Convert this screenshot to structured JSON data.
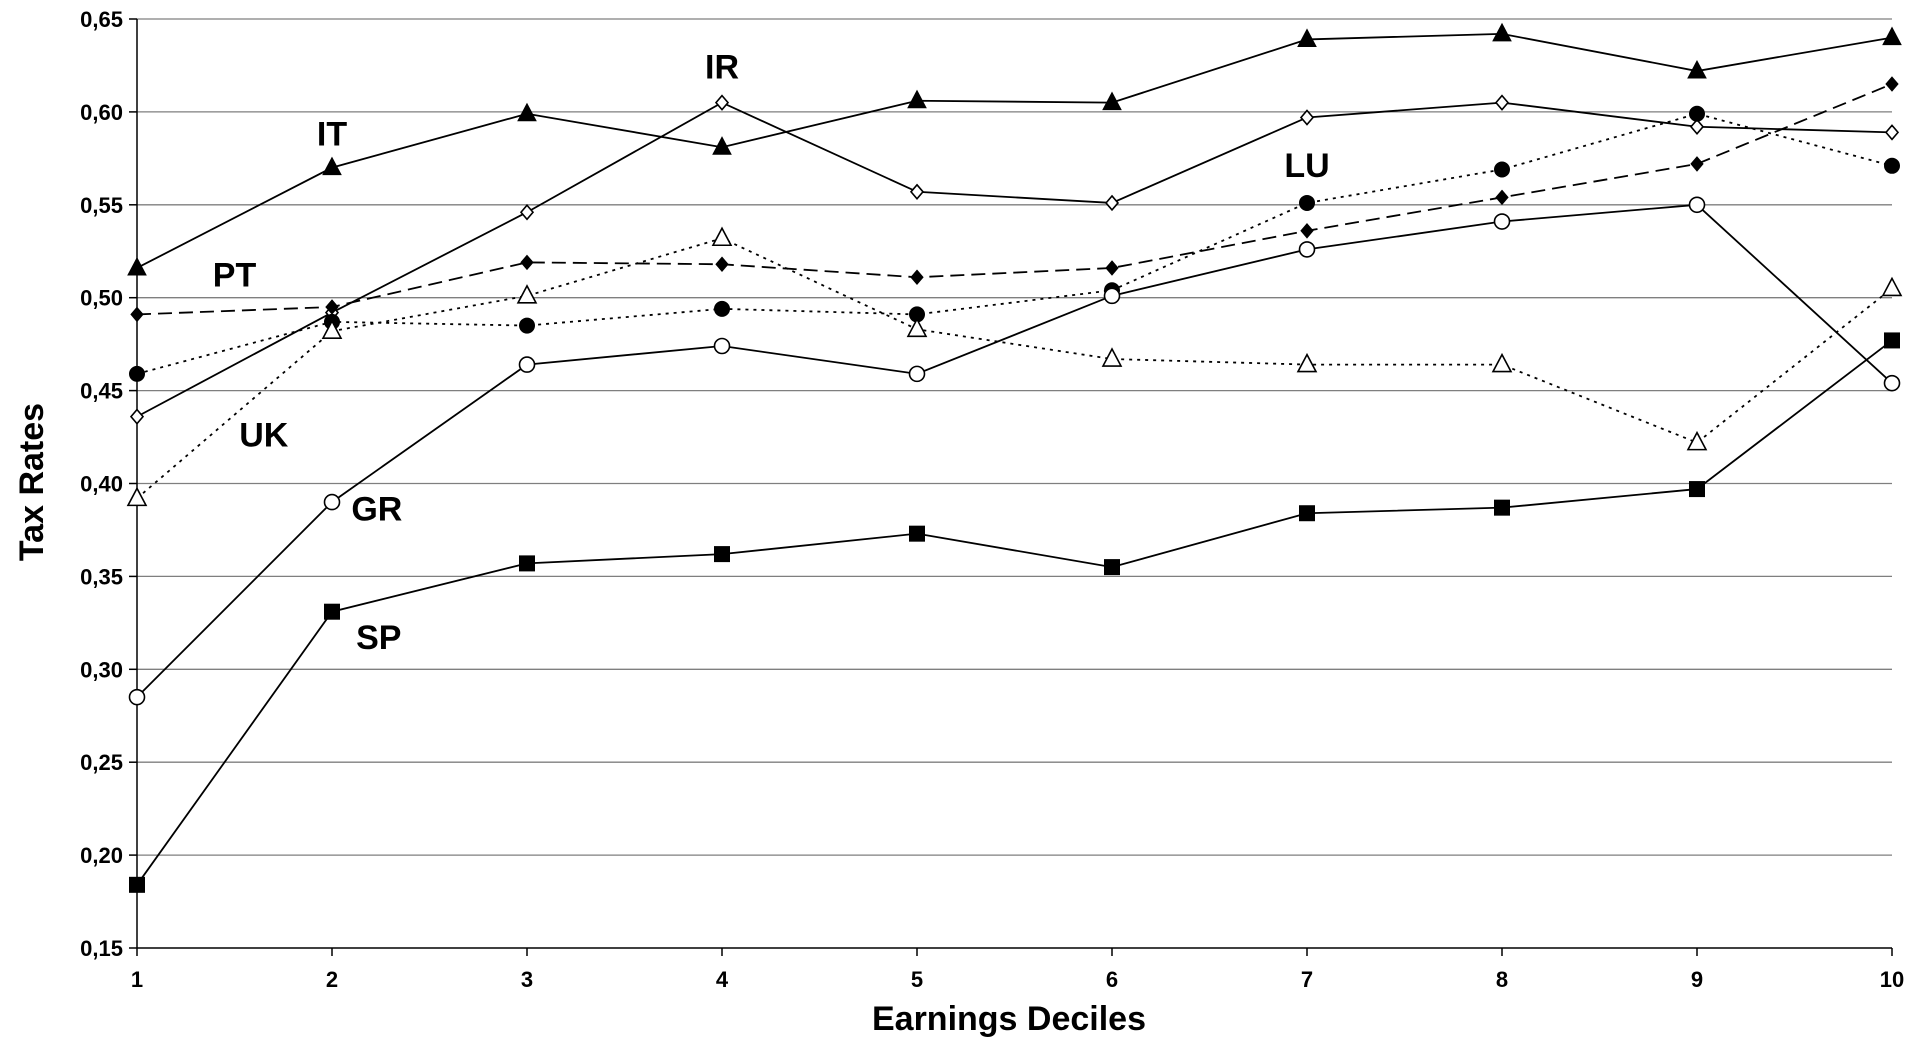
{
  "chart_data": {
    "type": "line",
    "title": "",
    "xlabel": "Earnings Deciles",
    "ylabel": "Tax Rates",
    "x": [
      1,
      2,
      3,
      4,
      5,
      6,
      7,
      8,
      9,
      10
    ],
    "x_tick_labels": [
      "1",
      "2",
      "3",
      "4",
      "5",
      "6",
      "7",
      "8",
      "9",
      "10"
    ],
    "ylim": [
      0.15,
      0.65
    ],
    "y_ticks": [
      0.15,
      0.2,
      0.25,
      0.3,
      0.35,
      0.4,
      0.45,
      0.5,
      0.55,
      0.6,
      0.65
    ],
    "y_tick_labels": [
      "0,15",
      "0,20",
      "0,25",
      "0,30",
      "0,35",
      "0,40",
      "0,45",
      "0,50",
      "0,55",
      "0,60",
      "0,65"
    ],
    "grid": "horizontal",
    "legend": "none",
    "series": [
      {
        "name": "IT",
        "values": [
          0.516,
          0.57,
          0.599,
          0.581,
          0.606,
          0.605,
          0.639,
          0.642,
          0.622,
          0.64
        ],
        "marker": "filled-triangle",
        "line": "solid",
        "color": "#000000"
      },
      {
        "name": "IR",
        "values": [
          0.436,
          0.492,
          0.546,
          0.605,
          0.557,
          0.551,
          0.597,
          0.605,
          0.592,
          0.589
        ],
        "marker": "open-diamond",
        "line": "solid",
        "color": "#000000"
      },
      {
        "name": "PT",
        "values": [
          0.491,
          0.495,
          0.519,
          0.518,
          0.511,
          0.516,
          0.536,
          0.554,
          0.572,
          0.615
        ],
        "marker": "filled-diamond",
        "line": "dashed",
        "color": "#000000"
      },
      {
        "name": "LU",
        "values": [
          0.459,
          0.487,
          0.485,
          0.494,
          0.491,
          0.504,
          0.551,
          0.569,
          0.599,
          0.571
        ],
        "marker": "filled-circle",
        "line": "dotted",
        "color": "#000000"
      },
      {
        "name": "UK",
        "values": [
          0.392,
          0.482,
          0.501,
          0.532,
          0.483,
          0.467,
          0.464,
          0.464,
          0.422,
          0.505
        ],
        "marker": "open-triangle",
        "line": "dotted",
        "color": "#000000"
      },
      {
        "name": "GR",
        "values": [
          0.285,
          0.39,
          0.464,
          0.474,
          0.459,
          0.501,
          0.526,
          0.541,
          0.55,
          0.454
        ],
        "marker": "open-circle",
        "line": "solid",
        "color": "#000000"
      },
      {
        "name": "SP",
        "values": [
          0.184,
          0.331,
          0.357,
          0.362,
          0.373,
          0.355,
          0.384,
          0.387,
          0.397,
          0.477
        ],
        "marker": "filled-square",
        "line": "solid",
        "color": "#000000"
      }
    ],
    "annotations": [
      {
        "text": "IT",
        "x": 2.0,
        "y": 0.582
      },
      {
        "text": "IR",
        "x": 4.0,
        "y": 0.618
      },
      {
        "text": "LU",
        "x": 7.0,
        "y": 0.565
      },
      {
        "text": "PT",
        "x": 1.5,
        "y": 0.506
      },
      {
        "text": "UK",
        "x": 1.65,
        "y": 0.42
      },
      {
        "text": "GR",
        "x": 2.23,
        "y": 0.38
      },
      {
        "text": "SP",
        "x": 2.24,
        "y": 0.311
      }
    ]
  }
}
